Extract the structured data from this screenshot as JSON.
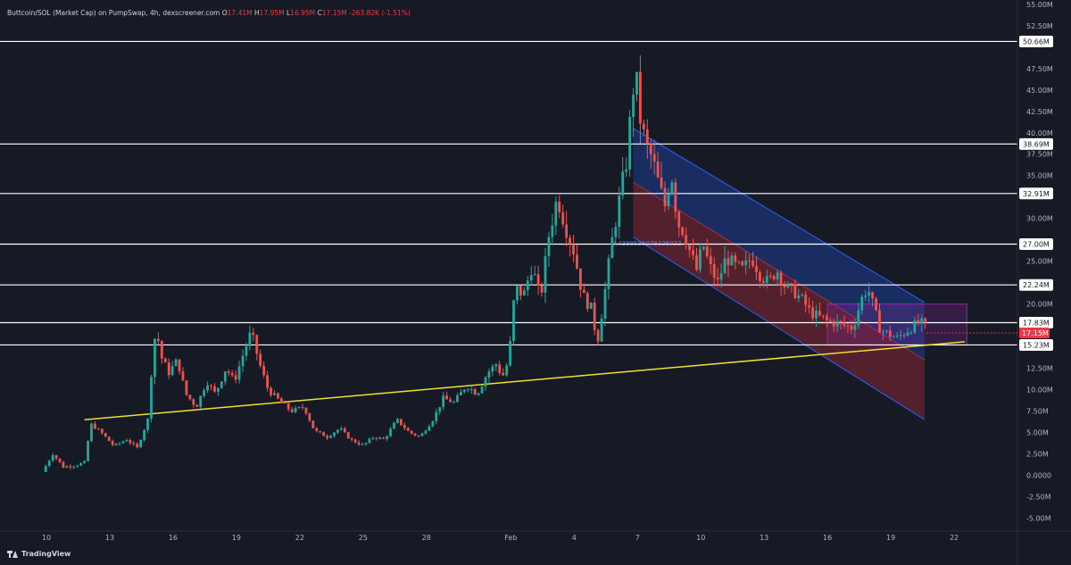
{
  "legend": {
    "symbol": "Buttcoin/SOL (Market Cap) on PumpSwap, 4h, dexscreener.com",
    "o_label": "O",
    "o_value": "17.41M",
    "h_label": "H",
    "h_value": "17.95M",
    "l_label": "L",
    "l_value": "16.95M",
    "c_label": "C",
    "c_value": "17.15M",
    "change": "-263.82K (-1.51%)"
  },
  "branding": {
    "name": "TradingView"
  },
  "colors": {
    "background": "#161a25",
    "up": "#26a69a",
    "down": "#ef5350",
    "trendline": "#f0e130",
    "channel_upper_fill": "#2962ff",
    "channel_lower_fill": "#f23645",
    "box": "#9c27b0",
    "level": "#ffffff"
  },
  "chart_data": {
    "type": "candlestick",
    "interval": "4h",
    "x_axis": {
      "tick_labels": [
        "10",
        "13",
        "16",
        "19",
        "22",
        "25",
        "28",
        "Feb",
        "4",
        "7",
        "10",
        "13",
        "16",
        "19",
        "22"
      ],
      "tick_days": [
        10,
        13,
        16,
        19,
        22,
        25,
        28,
        32,
        35,
        38,
        41,
        44,
        47,
        50,
        53
      ],
      "range_days": [
        7.8,
        56
      ]
    },
    "y_axis": {
      "tick_labels": [
        "55.00M",
        "52.50M",
        "47.50M",
        "45.00M",
        "42.50M",
        "40.00M",
        "37.50M",
        "35.00M",
        "30.00M",
        "25.00M",
        "20.00M",
        "12.50M",
        "10.00M",
        "7.50M",
        "5.00M",
        "2.50M",
        "0.0000",
        "-2.50M",
        "-5.00M"
      ],
      "tick_values": [
        55,
        52.5,
        47.5,
        45,
        42.5,
        40,
        37.5,
        35,
        30,
        25,
        20,
        12.5,
        10,
        7.5,
        5,
        2.5,
        0,
        -2.5,
        -5
      ],
      "range": [
        -6.5,
        55.5
      ],
      "unit": "M"
    },
    "levels": [
      {
        "label": "50.66M",
        "value": 50.66
      },
      {
        "label": "38.69M",
        "value": 38.69
      },
      {
        "label": "32.91M",
        "value": 32.91
      },
      {
        "label": "27.00M",
        "value": 27.0
      },
      {
        "label": "22.24M",
        "value": 22.24
      },
      {
        "label": "17.83M",
        "value": 17.83
      },
      {
        "label": "15.23M",
        "value": 15.23
      }
    ],
    "current_price": {
      "label": "17.15M",
      "value": 17.15
    },
    "trendline": {
      "from": [
        11.8,
        6.5
      ],
      "to": [
        53.5,
        15.6
      ]
    },
    "channel": {
      "start_day": 37.8,
      "end_day": 51.6,
      "upper_from": 40.5,
      "upper_to": 20.2,
      "mid_from": 34.2,
      "mid_to": 13.5,
      "lower_from": 27.8,
      "lower_to": 6.5,
      "annotation": "0.4399586079326022"
    },
    "box": {
      "from_day": 47.0,
      "to_day": 53.6,
      "top": 20.0,
      "bottom": 15.2
    },
    "path": [
      [
        9.8,
        0.4
      ],
      [
        10.3,
        2.5
      ],
      [
        10.8,
        1.0
      ],
      [
        11.4,
        1.2
      ],
      [
        11.8,
        1.5
      ],
      [
        12.1,
        6.0
      ],
      [
        12.6,
        5.0
      ],
      [
        13.2,
        3.4
      ],
      [
        13.8,
        4.2
      ],
      [
        14.3,
        3.2
      ],
      [
        14.8,
        6.5
      ],
      [
        15.0,
        13.0
      ],
      [
        15.2,
        17.5
      ],
      [
        15.4,
        14.0
      ],
      [
        15.8,
        12.0
      ],
      [
        16.2,
        13.5
      ],
      [
        16.6,
        9.5
      ],
      [
        17.1,
        8.0
      ],
      [
        17.6,
        11.0
      ],
      [
        18.0,
        9.5
      ],
      [
        18.5,
        12.5
      ],
      [
        18.9,
        11.0
      ],
      [
        19.3,
        14.0
      ],
      [
        19.7,
        16.8
      ],
      [
        20.1,
        13.0
      ],
      [
        20.5,
        10.0
      ],
      [
        21.0,
        8.8
      ],
      [
        21.6,
        7.5
      ],
      [
        22.2,
        8.0
      ],
      [
        22.7,
        5.2
      ],
      [
        23.3,
        4.5
      ],
      [
        23.9,
        5.5
      ],
      [
        24.4,
        4.2
      ],
      [
        25.0,
        3.5
      ],
      [
        25.5,
        4.5
      ],
      [
        26.0,
        4.2
      ],
      [
        26.6,
        6.5
      ],
      [
        27.2,
        5.0
      ],
      [
        27.7,
        4.5
      ],
      [
        28.3,
        6.5
      ],
      [
        28.8,
        9.0
      ],
      [
        29.3,
        8.5
      ],
      [
        29.9,
        10.5
      ],
      [
        30.4,
        9.5
      ],
      [
        30.9,
        12.0
      ],
      [
        31.3,
        13.0
      ],
      [
        31.6,
        11.5
      ],
      [
        31.9,
        13.5
      ],
      [
        32.2,
        22.0
      ],
      [
        32.6,
        21.0
      ],
      [
        33.0,
        24.5
      ],
      [
        33.4,
        20.5
      ],
      [
        33.8,
        28.0
      ],
      [
        34.2,
        32.5
      ],
      [
        34.6,
        29.0
      ],
      [
        35.0,
        26.0
      ],
      [
        35.4,
        21.0
      ],
      [
        35.8,
        19.5
      ],
      [
        36.1,
        15.5
      ],
      [
        36.4,
        20.5
      ],
      [
        36.8,
        27.5
      ],
      [
        37.2,
        33.0
      ],
      [
        37.5,
        37.0
      ],
      [
        37.7,
        43.0
      ],
      [
        37.9,
        47.5
      ],
      [
        38.1,
        42.0
      ],
      [
        38.4,
        38.5
      ],
      [
        38.7,
        37.0
      ],
      [
        39.0,
        34.0
      ],
      [
        39.3,
        31.5
      ],
      [
        39.6,
        35.5
      ],
      [
        39.9,
        29.5
      ],
      [
        40.2,
        28.5
      ],
      [
        40.5,
        26.0
      ],
      [
        40.8,
        24.0
      ],
      [
        41.1,
        27.0
      ],
      [
        41.4,
        24.5
      ],
      [
        41.8,
        22.5
      ],
      [
        42.2,
        25.5
      ],
      [
        42.6,
        24.5
      ],
      [
        43.0,
        24.0
      ],
      [
        43.4,
        25.5
      ],
      [
        43.8,
        23.5
      ],
      [
        44.2,
        22.5
      ],
      [
        44.6,
        24.0
      ],
      [
        45.0,
        22.0
      ],
      [
        45.4,
        21.5
      ],
      [
        45.8,
        20.5
      ],
      [
        46.2,
        19.0
      ],
      [
        46.6,
        18.5
      ],
      [
        47.0,
        18.0
      ],
      [
        47.4,
        17.8
      ],
      [
        47.8,
        17.5
      ],
      [
        48.2,
        17.2
      ],
      [
        48.6,
        20.5
      ],
      [
        48.9,
        22.0
      ],
      [
        49.2,
        19.5
      ],
      [
        49.5,
        17.0
      ],
      [
        49.9,
        16.5
      ],
      [
        50.3,
        16.0
      ],
      [
        50.7,
        16.8
      ],
      [
        51.1,
        17.5
      ],
      [
        51.4,
        17.9
      ],
      [
        51.7,
        17.15
      ]
    ]
  }
}
